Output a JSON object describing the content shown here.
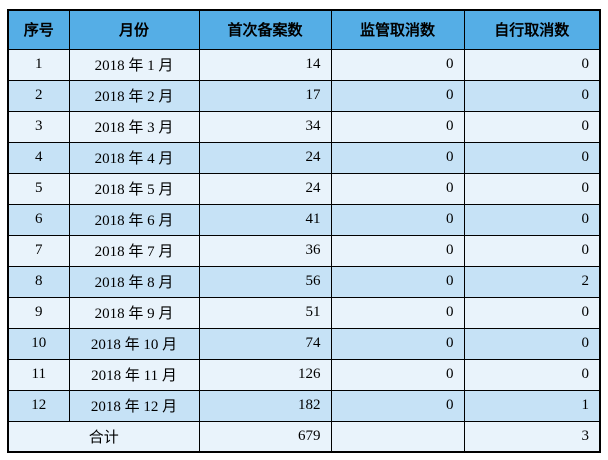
{
  "colors": {
    "header_bg": "#55AEE6",
    "row_odd_bg": "#E9F3FB",
    "row_even_bg": "#C6E2F6",
    "border": "#000000",
    "text": "#000000",
    "page_bg": "#FFFFFF"
  },
  "table": {
    "headers": {
      "no": "序号",
      "month": "月份",
      "first_filings": "首次备案数",
      "regulatory_cancellations": "监管取消数",
      "self_cancellations": "自行取消数"
    },
    "rows": [
      {
        "no": "1",
        "month": "2018 年 1 月",
        "first_filings": "14",
        "regulatory_cancellations": "0",
        "self_cancellations": "0"
      },
      {
        "no": "2",
        "month": "2018 年 2 月",
        "first_filings": "17",
        "regulatory_cancellations": "0",
        "self_cancellations": "0"
      },
      {
        "no": "3",
        "month": "2018 年 3 月",
        "first_filings": "34",
        "regulatory_cancellations": "0",
        "self_cancellations": "0"
      },
      {
        "no": "4",
        "month": "2018 年 4 月",
        "first_filings": "24",
        "regulatory_cancellations": "0",
        "self_cancellations": "0"
      },
      {
        "no": "5",
        "month": "2018 年 5 月",
        "first_filings": "24",
        "regulatory_cancellations": "0",
        "self_cancellations": "0"
      },
      {
        "no": "6",
        "month": "2018 年 6 月",
        "first_filings": "41",
        "regulatory_cancellations": "0",
        "self_cancellations": "0"
      },
      {
        "no": "7",
        "month": "2018 年 7 月",
        "first_filings": "36",
        "regulatory_cancellations": "0",
        "self_cancellations": "0"
      },
      {
        "no": "8",
        "month": "2018 年 8 月",
        "first_filings": "56",
        "regulatory_cancellations": "0",
        "self_cancellations": "2"
      },
      {
        "no": "9",
        "month": "2018 年 9 月",
        "first_filings": "51",
        "regulatory_cancellations": "0",
        "self_cancellations": "0"
      },
      {
        "no": "10",
        "month": "2018 年 10 月",
        "first_filings": "74",
        "regulatory_cancellations": "0",
        "self_cancellations": "0"
      },
      {
        "no": "11",
        "month": "2018 年 11 月",
        "first_filings": "126",
        "regulatory_cancellations": "0",
        "self_cancellations": "0"
      },
      {
        "no": "12",
        "month": "2018 年 12 月",
        "first_filings": "182",
        "regulatory_cancellations": "0",
        "self_cancellations": "1"
      }
    ],
    "total": {
      "label": "合计",
      "first_filings": "679",
      "regulatory_cancellations": "",
      "self_cancellations": "3"
    }
  }
}
